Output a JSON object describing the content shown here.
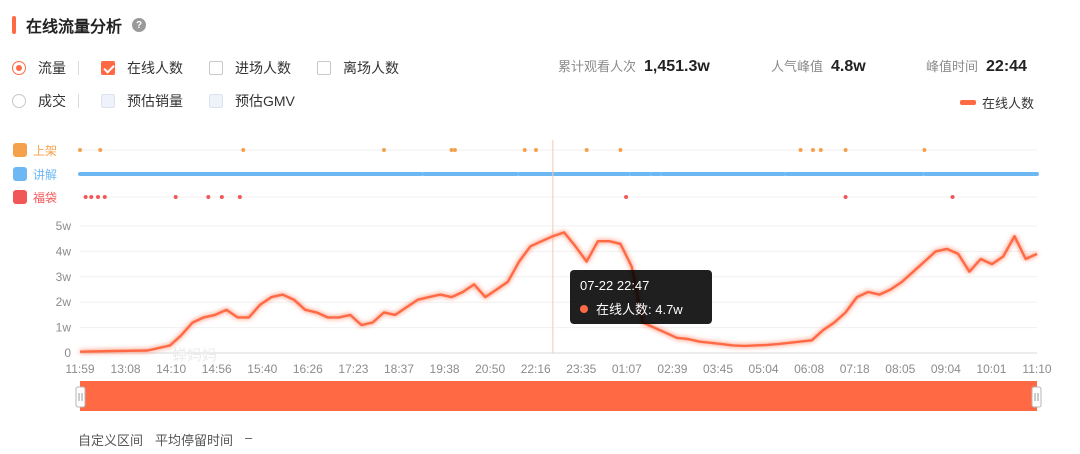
{
  "header": {
    "title": "在线流量分析",
    "help_glyph": "?"
  },
  "metrics": {
    "row1": [
      {
        "type": "radio",
        "label": "流量",
        "checked": true
      },
      {
        "type": "checkbox",
        "label": "在线人数",
        "checked": true
      },
      {
        "type": "checkbox",
        "label": "进场人数",
        "checked": false
      },
      {
        "type": "checkbox",
        "label": "离场人数",
        "checked": false
      }
    ],
    "row2": [
      {
        "type": "radio",
        "label": "成交",
        "checked": false
      },
      {
        "type": "checkbox",
        "label": "预估销量",
        "checked": false
      },
      {
        "type": "checkbox",
        "label": "预估GMV",
        "checked": false
      }
    ]
  },
  "stats": [
    {
      "label": "累计观看人次",
      "value": "1,451.3w"
    },
    {
      "label": "人气峰值",
      "value": "4.8w"
    },
    {
      "label": "峰值时间",
      "value": "22:44"
    }
  ],
  "legend": {
    "label": "在线人数",
    "color": "#ff6a45"
  },
  "event_rows": [
    {
      "label": "上架",
      "icon": "cart-icon",
      "color": "#f5a04a"
    },
    {
      "label": "讲解",
      "icon": "microphone-icon",
      "color": "#6db8f2"
    },
    {
      "label": "福袋",
      "icon": "bag-icon",
      "color": "#f25757"
    }
  ],
  "watermark": "蝉妈妈",
  "chart_data": {
    "type": "line",
    "series": [
      {
        "name": "在线人数",
        "color": "#ff6a45"
      }
    ],
    "x_ticks": [
      "11:59",
      "13:08",
      "14:10",
      "14:56",
      "15:40",
      "16:26",
      "17:23",
      "18:37",
      "19:38",
      "20:50",
      "22:16",
      "23:35",
      "01:07",
      "02:39",
      "03:45",
      "05:04",
      "06:08",
      "07:18",
      "08:05",
      "09:04",
      "10:01",
      "11:10"
    ],
    "y_ticks": [
      "0",
      "1w",
      "2w",
      "3w",
      "4w",
      "5w"
    ],
    "ylim": [
      0,
      5
    ],
    "y_unit": "w",
    "points": [
      [
        0,
        0.05
      ],
      [
        3,
        0.08
      ],
      [
        6,
        0.1
      ],
      [
        8,
        0.3
      ],
      [
        9,
        0.7
      ],
      [
        10,
        1.2
      ],
      [
        11,
        1.4
      ],
      [
        12,
        1.5
      ],
      [
        13,
        1.7
      ],
      [
        14,
        1.4
      ],
      [
        15,
        1.4
      ],
      [
        16,
        1.9
      ],
      [
        17,
        2.2
      ],
      [
        18,
        2.3
      ],
      [
        19,
        2.1
      ],
      [
        20,
        1.7
      ],
      [
        21,
        1.6
      ],
      [
        22,
        1.4
      ],
      [
        23,
        1.4
      ],
      [
        24,
        1.5
      ],
      [
        25,
        1.1
      ],
      [
        26,
        1.2
      ],
      [
        27,
        1.6
      ],
      [
        28,
        1.5
      ],
      [
        29,
        1.8
      ],
      [
        30,
        2.1
      ],
      [
        31,
        2.2
      ],
      [
        32,
        2.3
      ],
      [
        33,
        2.2
      ],
      [
        34,
        2.4
      ],
      [
        35,
        2.7
      ],
      [
        36,
        2.2
      ],
      [
        37,
        2.5
      ],
      [
        38,
        2.8
      ],
      [
        39,
        3.6
      ],
      [
        40,
        4.2
      ],
      [
        41,
        4.4
      ],
      [
        42,
        4.6
      ],
      [
        43,
        4.75
      ],
      [
        44,
        4.2
      ],
      [
        45,
        3.6
      ],
      [
        46,
        4.4
      ],
      [
        47,
        4.4
      ],
      [
        48,
        4.3
      ],
      [
        49,
        3.4
      ],
      [
        50,
        1.2
      ],
      [
        51,
        1.0
      ],
      [
        52,
        0.8
      ],
      [
        53,
        0.6
      ],
      [
        54,
        0.55
      ],
      [
        55,
        0.45
      ],
      [
        56,
        0.4
      ],
      [
        57,
        0.35
      ],
      [
        58,
        0.3
      ],
      [
        59,
        0.28
      ],
      [
        60,
        0.3
      ],
      [
        61,
        0.32
      ],
      [
        62,
        0.35
      ],
      [
        63,
        0.4
      ],
      [
        64,
        0.45
      ],
      [
        65,
        0.5
      ],
      [
        66,
        0.9
      ],
      [
        67,
        1.2
      ],
      [
        68,
        1.6
      ],
      [
        69,
        2.2
      ],
      [
        70,
        2.4
      ],
      [
        71,
        2.3
      ],
      [
        72,
        2.5
      ],
      [
        73,
        2.8
      ],
      [
        74,
        3.2
      ],
      [
        75,
        3.6
      ],
      [
        76,
        4.0
      ],
      [
        77,
        4.1
      ],
      [
        78,
        3.9
      ],
      [
        79,
        3.2
      ],
      [
        80,
        3.7
      ],
      [
        81,
        3.5
      ],
      [
        82,
        3.8
      ],
      [
        83,
        4.6
      ],
      [
        84,
        3.7
      ],
      [
        85,
        3.9
      ]
    ],
    "x_range": [
      0,
      85
    ],
    "events": {
      "上架": [
        0,
        1.8,
        14.5,
        27,
        33,
        33.3,
        39.5,
        40.5,
        45,
        48,
        64,
        65.1,
        65.8,
        68,
        75
      ],
      "讲解_gaps": [
        30.3,
        38.8,
        48.7,
        50.6,
        51.5,
        62.5,
        74.8
      ],
      "福袋": [
        0.5,
        1,
        1.6,
        2.2,
        8.5,
        11.4,
        12.6,
        14.2,
        48.5,
        68,
        77.5
      ]
    },
    "tooltip": {
      "time": "07-22 22:47",
      "label": "在线人数: 4.7w",
      "x_pos": 42
    }
  },
  "footer": {
    "label1": "自定义区间",
    "label2": "平均停留时间",
    "value": "–"
  }
}
